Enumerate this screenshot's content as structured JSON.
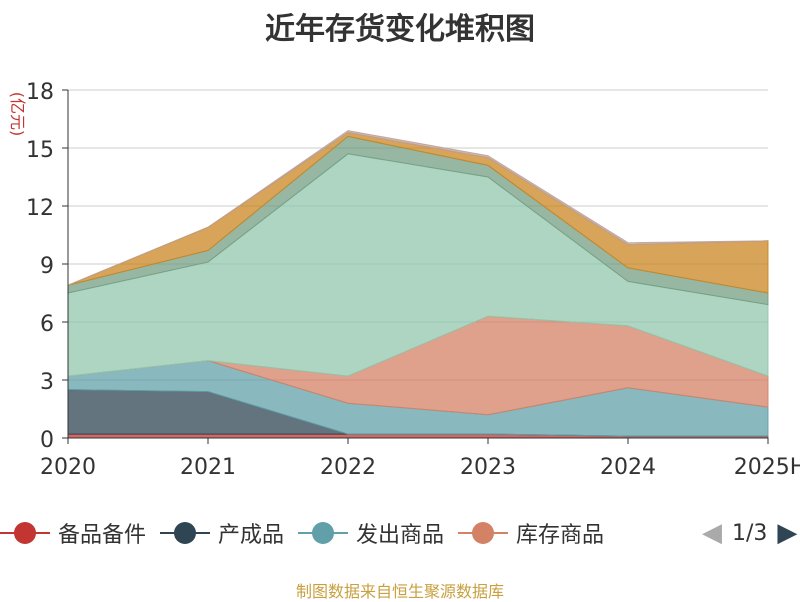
{
  "chart_data": {
    "type": "area",
    "stacked": true,
    "title": "近年存货变化堆积图",
    "ylabel": "(亿元)",
    "categories": [
      "2020",
      "2021",
      "2022",
      "2023",
      "2024",
      "2025H"
    ],
    "ylim": [
      0,
      18
    ],
    "yticks": [
      0,
      3,
      6,
      9,
      12,
      15,
      18
    ],
    "grid": true,
    "legend_position": "bottom",
    "series": [
      {
        "name": "备品备件",
        "color": "#c23531",
        "values": [
          0.2,
          0.2,
          0.2,
          0.2,
          0.1,
          0.1
        ]
      },
      {
        "name": "产成品",
        "color": "#2f4554",
        "values": [
          2.3,
          2.2,
          0.0,
          0.0,
          0.0,
          0.0
        ]
      },
      {
        "name": "发出商品",
        "color": "#61a0a8",
        "values": [
          0.7,
          1.6,
          1.6,
          1.0,
          2.5,
          1.5
        ]
      },
      {
        "name": "库存商品",
        "color": "#d48265",
        "values": [
          0.0,
          0.0,
          1.4,
          5.1,
          3.2,
          1.6
        ]
      },
      {
        "name": "",
        "color": "#91c7ae",
        "values": [
          4.3,
          5.1,
          11.5,
          7.2,
          2.3,
          3.7
        ]
      },
      {
        "name": "",
        "color": "#749f83",
        "values": [
          0.4,
          0.6,
          0.9,
          0.6,
          0.7,
          0.6
        ]
      },
      {
        "name": "",
        "color": "#ca8622",
        "values": [
          0.0,
          1.2,
          0.2,
          0.4,
          1.2,
          2.7
        ]
      },
      {
        "name": "",
        "color": "#bda29a",
        "values": [
          0.0,
          0.0,
          0.1,
          0.1,
          0.1,
          0.0
        ]
      }
    ]
  },
  "legend": {
    "items": [
      {
        "label": "备品备件",
        "color": "#c23531"
      },
      {
        "label": "产成品",
        "color": "#2f4554"
      },
      {
        "label": "发出商品",
        "color": "#61a0a8"
      },
      {
        "label": "库存商品",
        "color": "#d48265"
      }
    ]
  },
  "pager": {
    "text": "1/3",
    "prev_icon": "triangle-left-icon",
    "next_icon": "triangle-right-icon"
  },
  "source": "制图数据来自恒生聚源数据库"
}
